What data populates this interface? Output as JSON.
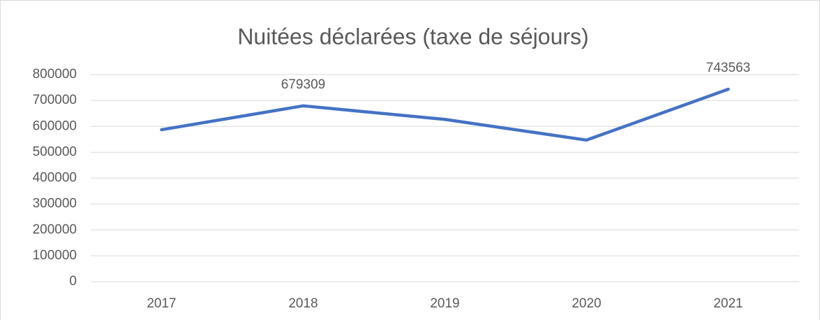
{
  "chart_data": {
    "type": "line",
    "title": "Nuitées déclarées (taxe de séjours)",
    "categories": [
      "2017",
      "2018",
      "2019",
      "2020",
      "2021"
    ],
    "series": [
      {
        "name": "Nuitées",
        "color": "#4472c4",
        "values": [
          587000,
          679309,
          627000,
          547000,
          743563
        ],
        "value_labels": [
          null,
          "679309",
          null,
          null,
          "743563"
        ]
      }
    ],
    "ylim": [
      0,
      800000
    ],
    "yticks": [
      0,
      100000,
      200000,
      300000,
      400000,
      500000,
      600000,
      700000,
      800000
    ],
    "grid": true
  }
}
